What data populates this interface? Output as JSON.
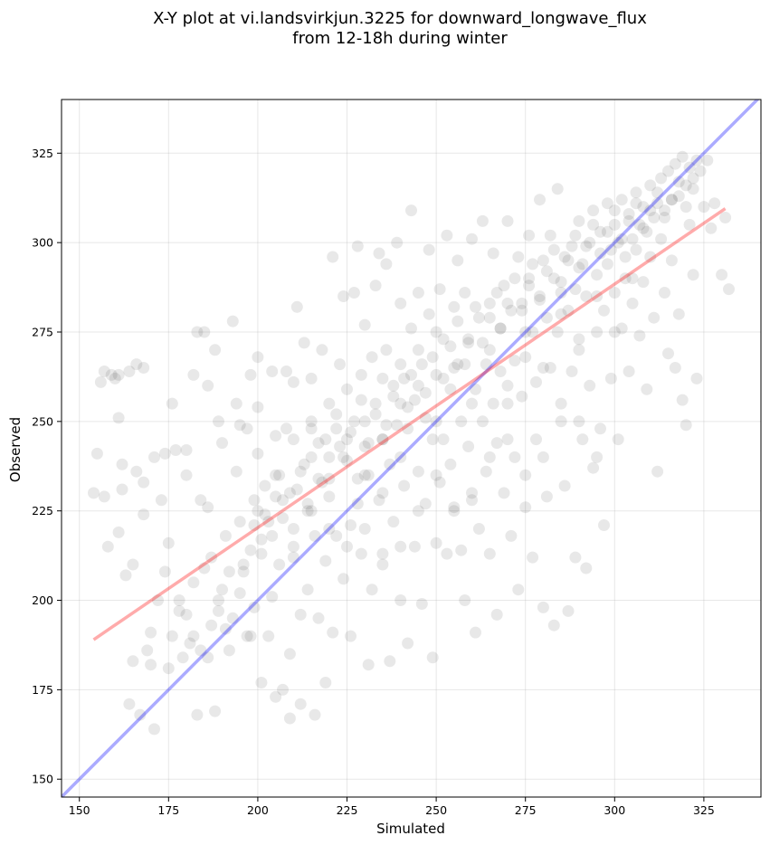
{
  "chart_data": {
    "type": "scatter",
    "title_line1": "X-Y plot at vi.landsvirkjun.3225 for downward_longwave_flux",
    "title_line2": "from 12-18h during winter",
    "xlabel": "Simulated",
    "ylabel": "Observed",
    "xlim": [
      145,
      341
    ],
    "ylim": [
      145,
      340
    ],
    "xticks": [
      150,
      175,
      200,
      225,
      250,
      275,
      300,
      325
    ],
    "yticks": [
      150,
      175,
      200,
      225,
      250,
      275,
      300,
      325
    ],
    "grid": true,
    "point_color": "#000000",
    "point_alpha": 0.09,
    "one_to_one_line": {
      "color": "#0000ff",
      "x": [
        145,
        341
      ],
      "y": [
        145,
        341
      ]
    },
    "fit_line": {
      "color": "#ff0000",
      "x": [
        154,
        331
      ],
      "y": [
        189,
        309.5
      ]
    },
    "points": [
      [
        154,
        230
      ],
      [
        155,
        241
      ],
      [
        156,
        261
      ],
      [
        157,
        229
      ],
      [
        157,
        264
      ],
      [
        158,
        215
      ],
      [
        159,
        263
      ],
      [
        160,
        262
      ],
      [
        161,
        263
      ],
      [
        161,
        251
      ],
      [
        162,
        231
      ],
      [
        161,
        219
      ],
      [
        163,
        207
      ],
      [
        162,
        238
      ],
      [
        164,
        264
      ],
      [
        165,
        210
      ],
      [
        165,
        183
      ],
      [
        164,
        171
      ],
      [
        166,
        236
      ],
      [
        166,
        266
      ],
      [
        167,
        168
      ],
      [
        168,
        265
      ],
      [
        168,
        233
      ],
      [
        168,
        224
      ],
      [
        169,
        186
      ],
      [
        170,
        182
      ],
      [
        170,
        191
      ],
      [
        171,
        240
      ],
      [
        171,
        164
      ],
      [
        172,
        200
      ],
      [
        173,
        228
      ],
      [
        174,
        208
      ],
      [
        174,
        241
      ],
      [
        175,
        216
      ],
      [
        175,
        181
      ],
      [
        176,
        255
      ],
      [
        176,
        190
      ],
      [
        177,
        242
      ],
      [
        178,
        197
      ],
      [
        179,
        184
      ],
      [
        180,
        235
      ],
      [
        180,
        242
      ],
      [
        181,
        188
      ],
      [
        182,
        263
      ],
      [
        182,
        205
      ],
      [
        183,
        275
      ],
      [
        183,
        168
      ],
      [
        184,
        228
      ],
      [
        185,
        209
      ],
      [
        185,
        275
      ],
      [
        186,
        260
      ],
      [
        186,
        226
      ],
      [
        187,
        212
      ],
      [
        188,
        270
      ],
      [
        188,
        169
      ],
      [
        189,
        250
      ],
      [
        189,
        200
      ],
      [
        190,
        244
      ],
      [
        191,
        192
      ],
      [
        191,
        218
      ],
      [
        192,
        208
      ],
      [
        193,
        278
      ],
      [
        194,
        236
      ],
      [
        194,
        255
      ],
      [
        195,
        222
      ],
      [
        195,
        249
      ],
      [
        196,
        210
      ],
      [
        197,
        190
      ],
      [
        197,
        248
      ],
      [
        198,
        263
      ],
      [
        198,
        190
      ],
      [
        199,
        198
      ],
      [
        199,
        228
      ],
      [
        200,
        268
      ],
      [
        200,
        254
      ],
      [
        200,
        241
      ],
      [
        201,
        217
      ],
      [
        201,
        177
      ],
      [
        202,
        232
      ],
      [
        203,
        222
      ],
      [
        203,
        190
      ],
      [
        204,
        264
      ],
      [
        204,
        201
      ],
      [
        205,
        246
      ],
      [
        205,
        173
      ],
      [
        206,
        235
      ],
      [
        206,
        210
      ],
      [
        207,
        228
      ],
      [
        207,
        175
      ],
      [
        208,
        264
      ],
      [
        208,
        248
      ],
      [
        209,
        185
      ],
      [
        209,
        167
      ],
      [
        210,
        220
      ],
      [
        210,
        261
      ],
      [
        211,
        282
      ],
      [
        211,
        231
      ],
      [
        212,
        196
      ],
      [
        212,
        171
      ],
      [
        213,
        238
      ],
      [
        213,
        272
      ],
      [
        214,
        225
      ],
      [
        214,
        203
      ],
      [
        215,
        248
      ],
      [
        215,
        262
      ],
      [
        216,
        218
      ],
      [
        216,
        168
      ],
      [
        217,
        195
      ],
      [
        217,
        244
      ],
      [
        218,
        270
      ],
      [
        218,
        233
      ],
      [
        219,
        211
      ],
      [
        219,
        177
      ],
      [
        220,
        255
      ],
      [
        220,
        234
      ],
      [
        221,
        191
      ],
      [
        221,
        296
      ],
      [
        222,
        248
      ],
      [
        222,
        218
      ],
      [
        223,
        243
      ],
      [
        223,
        266
      ],
      [
        224,
        285
      ],
      [
        224,
        206
      ],
      [
        225,
        259
      ],
      [
        225,
        239
      ],
      [
        226,
        221
      ],
      [
        226,
        190
      ],
      [
        227,
        286
      ],
      [
        227,
        250
      ],
      [
        228,
        227
      ],
      [
        228,
        299
      ],
      [
        229,
        263
      ],
      [
        229,
        213
      ],
      [
        230,
        243
      ],
      [
        230,
        277
      ],
      [
        231,
        235
      ],
      [
        231,
        182
      ],
      [
        232,
        268
      ],
      [
        232,
        203
      ],
      [
        233,
        288
      ],
      [
        233,
        255
      ],
      [
        234,
        228
      ],
      [
        234,
        297
      ],
      [
        235,
        245
      ],
      [
        235,
        213
      ],
      [
        236,
        270
      ],
      [
        236,
        294
      ],
      [
        237,
        238
      ],
      [
        237,
        183
      ],
      [
        238,
        260
      ],
      [
        238,
        222
      ],
      [
        239,
        300
      ],
      [
        239,
        249
      ],
      [
        240,
        283
      ],
      [
        240,
        200
      ],
      [
        241,
        262
      ],
      [
        241,
        232
      ],
      [
        242,
        248
      ],
      [
        242,
        188
      ],
      [
        243,
        276
      ],
      [
        243,
        309
      ],
      [
        244,
        215
      ],
      [
        244,
        256
      ],
      [
        245,
        236
      ],
      [
        245,
        286
      ],
      [
        246,
        266
      ],
      [
        246,
        199
      ],
      [
        247,
        251
      ],
      [
        247,
        227
      ],
      [
        248,
        280
      ],
      [
        248,
        298
      ],
      [
        249,
        245
      ],
      [
        249,
        184
      ],
      [
        250,
        263
      ],
      [
        250,
        216
      ],
      [
        251,
        233
      ],
      [
        251,
        287
      ],
      [
        252,
        273
      ],
      [
        252,
        245
      ],
      [
        253,
        302
      ],
      [
        253,
        213
      ],
      [
        254,
        259
      ],
      [
        254,
        238
      ],
      [
        255,
        282
      ],
      [
        255,
        226
      ],
      [
        256,
        266
      ],
      [
        256,
        295
      ],
      [
        257,
        250
      ],
      [
        257,
        214
      ],
      [
        258,
        286
      ],
      [
        258,
        200
      ],
      [
        259,
        272
      ],
      [
        259,
        243
      ],
      [
        260,
        228
      ],
      [
        260,
        301
      ],
      [
        261,
        259
      ],
      [
        261,
        191
      ],
      [
        262,
        279
      ],
      [
        262,
        220
      ],
      [
        263,
        250
      ],
      [
        263,
        306
      ],
      [
        264,
        266
      ],
      [
        264,
        236
      ],
      [
        265,
        283
      ],
      [
        265,
        213
      ],
      [
        266,
        255
      ],
      [
        266,
        297
      ],
      [
        267,
        244
      ],
      [
        267,
        196
      ],
      [
        268,
        276
      ],
      [
        268,
        264
      ],
      [
        269,
        288
      ],
      [
        269,
        230
      ],
      [
        270,
        255
      ],
      [
        270,
        306
      ],
      [
        271,
        281
      ],
      [
        271,
        218
      ],
      [
        272,
        267
      ],
      [
        272,
        240
      ],
      [
        273,
        296
      ],
      [
        273,
        203
      ],
      [
        274,
        283
      ],
      [
        274,
        257
      ],
      [
        275,
        268
      ],
      [
        275,
        226
      ],
      [
        276,
        290
      ],
      [
        276,
        302
      ],
      [
        277,
        275
      ],
      [
        277,
        212
      ],
      [
        278,
        261
      ],
      [
        278,
        245
      ],
      [
        279,
        312
      ],
      [
        279,
        285
      ],
      [
        280,
        295
      ],
      [
        280,
        198
      ],
      [
        281,
        279
      ],
      [
        281,
        229
      ],
      [
        282,
        302
      ],
      [
        282,
        265
      ],
      [
        283,
        290
      ],
      [
        283,
        193
      ],
      [
        284,
        275
      ],
      [
        284,
        315
      ],
      [
        285,
        286
      ],
      [
        285,
        250
      ],
      [
        286,
        296
      ],
      [
        286,
        232
      ],
      [
        287,
        281
      ],
      [
        287,
        197
      ],
      [
        288,
        299
      ],
      [
        288,
        264
      ],
      [
        289,
        287
      ],
      [
        289,
        212
      ],
      [
        290,
        306
      ],
      [
        290,
        273
      ],
      [
        291,
        294
      ],
      [
        291,
        245
      ],
      [
        292,
        285
      ],
      [
        292,
        209
      ],
      [
        293,
        300
      ],
      [
        293,
        260
      ],
      [
        294,
        309
      ],
      [
        294,
        237
      ],
      [
        295,
        291
      ],
      [
        295,
        275
      ],
      [
        296,
        303
      ],
      [
        296,
        248
      ],
      [
        297,
        281
      ],
      [
        297,
        221
      ],
      [
        298,
        311
      ],
      [
        298,
        294
      ],
      [
        299,
        298
      ],
      [
        299,
        262
      ],
      [
        300,
        305
      ],
      [
        300,
        286
      ],
      [
        301,
        300
      ],
      [
        301,
        245
      ],
      [
        302,
        312
      ],
      [
        302,
        276
      ],
      [
        303,
        296
      ],
      [
        303,
        290
      ],
      [
        304,
        308
      ],
      [
        304,
        264
      ],
      [
        305,
        301
      ],
      [
        305,
        283
      ],
      [
        306,
        314
      ],
      [
        306,
        298
      ],
      [
        307,
        305
      ],
      [
        307,
        274
      ],
      [
        308,
        310
      ],
      [
        308,
        289
      ],
      [
        309,
        303
      ],
      [
        309,
        259
      ],
      [
        310,
        316
      ],
      [
        310,
        296
      ],
      [
        311,
        307
      ],
      [
        311,
        279
      ],
      [
        312,
        311
      ],
      [
        312,
        236
      ],
      [
        313,
        318
      ],
      [
        313,
        301
      ],
      [
        314,
        309
      ],
      [
        314,
        286
      ],
      [
        315,
        320
      ],
      [
        315,
        269
      ],
      [
        316,
        312
      ],
      [
        316,
        295
      ],
      [
        317,
        322
      ],
      [
        317,
        265
      ],
      [
        318,
        313
      ],
      [
        318,
        280
      ],
      [
        319,
        324
      ],
      [
        319,
        256
      ],
      [
        320,
        316
      ],
      [
        320,
        249
      ],
      [
        321,
        321
      ],
      [
        321,
        305
      ],
      [
        322,
        318
      ],
      [
        322,
        291
      ],
      [
        323,
        323
      ],
      [
        323,
        262
      ],
      [
        324,
        320
      ],
      [
        325,
        310
      ],
      [
        326,
        323
      ],
      [
        327,
        304
      ],
      [
        328,
        311
      ],
      [
        330,
        291
      ],
      [
        331,
        307
      ],
      [
        332,
        287
      ],
      [
        178,
        200
      ],
      [
        180,
        196
      ],
      [
        182,
        190
      ],
      [
        184,
        186
      ],
      [
        186,
        184
      ],
      [
        187,
        193
      ],
      [
        189,
        197
      ],
      [
        190,
        203
      ],
      [
        192,
        186
      ],
      [
        193,
        195
      ],
      [
        195,
        202
      ],
      [
        196,
        208
      ],
      [
        198,
        214
      ],
      [
        199,
        221
      ],
      [
        201,
        213
      ],
      [
        202,
        224
      ],
      [
        204,
        218
      ],
      [
        205,
        229
      ],
      [
        207,
        223
      ],
      [
        209,
        230
      ],
      [
        210,
        212
      ],
      [
        212,
        236
      ],
      [
        214,
        227
      ],
      [
        215,
        240
      ],
      [
        217,
        234
      ],
      [
        219,
        245
      ],
      [
        220,
        229
      ],
      [
        222,
        252
      ],
      [
        224,
        240
      ],
      [
        226,
        247
      ],
      [
        228,
        234
      ],
      [
        229,
        256
      ],
      [
        231,
        244
      ],
      [
        233,
        252
      ],
      [
        235,
        262
      ],
      [
        236,
        249
      ],
      [
        238,
        257
      ],
      [
        240,
        266
      ],
      [
        242,
        254
      ],
      [
        243,
        263
      ],
      [
        245,
        270
      ],
      [
        247,
        258
      ],
      [
        249,
        268
      ],
      [
        250,
        275
      ],
      [
        252,
        262
      ],
      [
        254,
        271
      ],
      [
        256,
        278
      ],
      [
        258,
        266
      ],
      [
        259,
        273
      ],
      [
        261,
        282
      ],
      [
        263,
        272
      ],
      [
        265,
        279
      ],
      [
        267,
        286
      ],
      [
        268,
        276
      ],
      [
        270,
        283
      ],
      [
        272,
        290
      ],
      [
        274,
        281
      ],
      [
        276,
        288
      ],
      [
        277,
        294
      ],
      [
        279,
        284
      ],
      [
        281,
        292
      ],
      [
        283,
        298
      ],
      [
        285,
        289
      ],
      [
        287,
        295
      ],
      [
        289,
        302
      ],
      [
        290,
        293
      ],
      [
        292,
        299
      ],
      [
        294,
        305
      ],
      [
        296,
        297
      ],
      [
        298,
        303
      ],
      [
        300,
        309
      ],
      [
        302,
        301
      ],
      [
        304,
        306
      ],
      [
        306,
        311
      ],
      [
        308,
        304
      ],
      [
        310,
        309
      ],
      [
        312,
        314
      ],
      [
        314,
        307
      ],
      [
        316,
        312
      ],
      [
        318,
        317
      ],
      [
        320,
        310
      ],
      [
        322,
        315
      ],
      [
        230,
        250
      ],
      [
        235,
        245
      ],
      [
        240,
        255
      ],
      [
        245,
        260
      ],
      [
        250,
        250
      ],
      [
        255,
        265
      ],
      [
        260,
        255
      ],
      [
        265,
        270
      ],
      [
        270,
        260
      ],
      [
        275,
        275
      ],
      [
        280,
        265
      ],
      [
        285,
        280
      ],
      [
        290,
        270
      ],
      [
        295,
        285
      ],
      [
        300,
        275
      ],
      [
        305,
        290
      ],
      [
        285,
        255
      ],
      [
        290,
        250
      ],
      [
        295,
        240
      ],
      [
        280,
        240
      ],
      [
        275,
        235
      ],
      [
        270,
        245
      ],
      [
        265,
        240
      ],
      [
        260,
        230
      ],
      [
        255,
        225
      ],
      [
        250,
        235
      ],
      [
        245,
        225
      ],
      [
        240,
        240
      ],
      [
        235,
        230
      ],
      [
        230,
        235
      ],
      [
        225,
        245
      ],
      [
        220,
        240
      ],
      [
        215,
        250
      ],
      [
        210,
        245
      ],
      [
        205,
        235
      ],
      [
        200,
        225
      ],
      [
        210,
        215
      ],
      [
        215,
        225
      ],
      [
        220,
        220
      ],
      [
        225,
        215
      ],
      [
        230,
        220
      ],
      [
        235,
        210
      ],
      [
        240,
        215
      ]
    ]
  }
}
